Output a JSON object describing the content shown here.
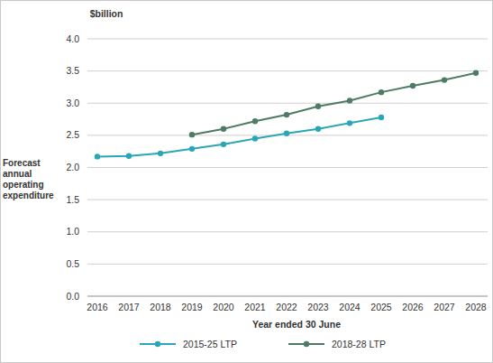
{
  "chart_data": {
    "type": "line",
    "y_unit_label": "$billion",
    "y_label": "Forecast annual operating expenditure",
    "x_label": "Year ended 30 June",
    "categories": [
      "2016",
      "2017",
      "2018",
      "2019",
      "2020",
      "2021",
      "2022",
      "2023",
      "2024",
      "2025",
      "2026",
      "2027",
      "2028"
    ],
    "series": [
      {
        "name": "2015-25 LTP",
        "color": "#2aa7b5",
        "marker": "circle",
        "line_style": "solid",
        "values": [
          2.17,
          2.18,
          2.22,
          2.29,
          2.36,
          2.45,
          2.53,
          2.6,
          2.69,
          2.78,
          null,
          null,
          null
        ]
      },
      {
        "name": "2018-28 LTP",
        "color": "#4d7b63",
        "marker": "circle",
        "line_style": "solid",
        "values": [
          null,
          null,
          null,
          2.51,
          2.6,
          2.72,
          2.82,
          2.95,
          3.04,
          3.17,
          3.27,
          3.36,
          3.47
        ]
      }
    ],
    "ylim": [
      0,
      4
    ],
    "yticks": [
      {
        "value": 0,
        "label": "0.0"
      },
      0.5,
      {
        "value": 1,
        "label": "1.0"
      },
      1.5,
      {
        "value": 2,
        "label": "2.0"
      },
      2.5,
      {
        "value": 3,
        "label": "3.0"
      },
      3.5,
      {
        "value": 4,
        "label": "4.0"
      }
    ],
    "grid": true,
    "legend": "bottom"
  }
}
